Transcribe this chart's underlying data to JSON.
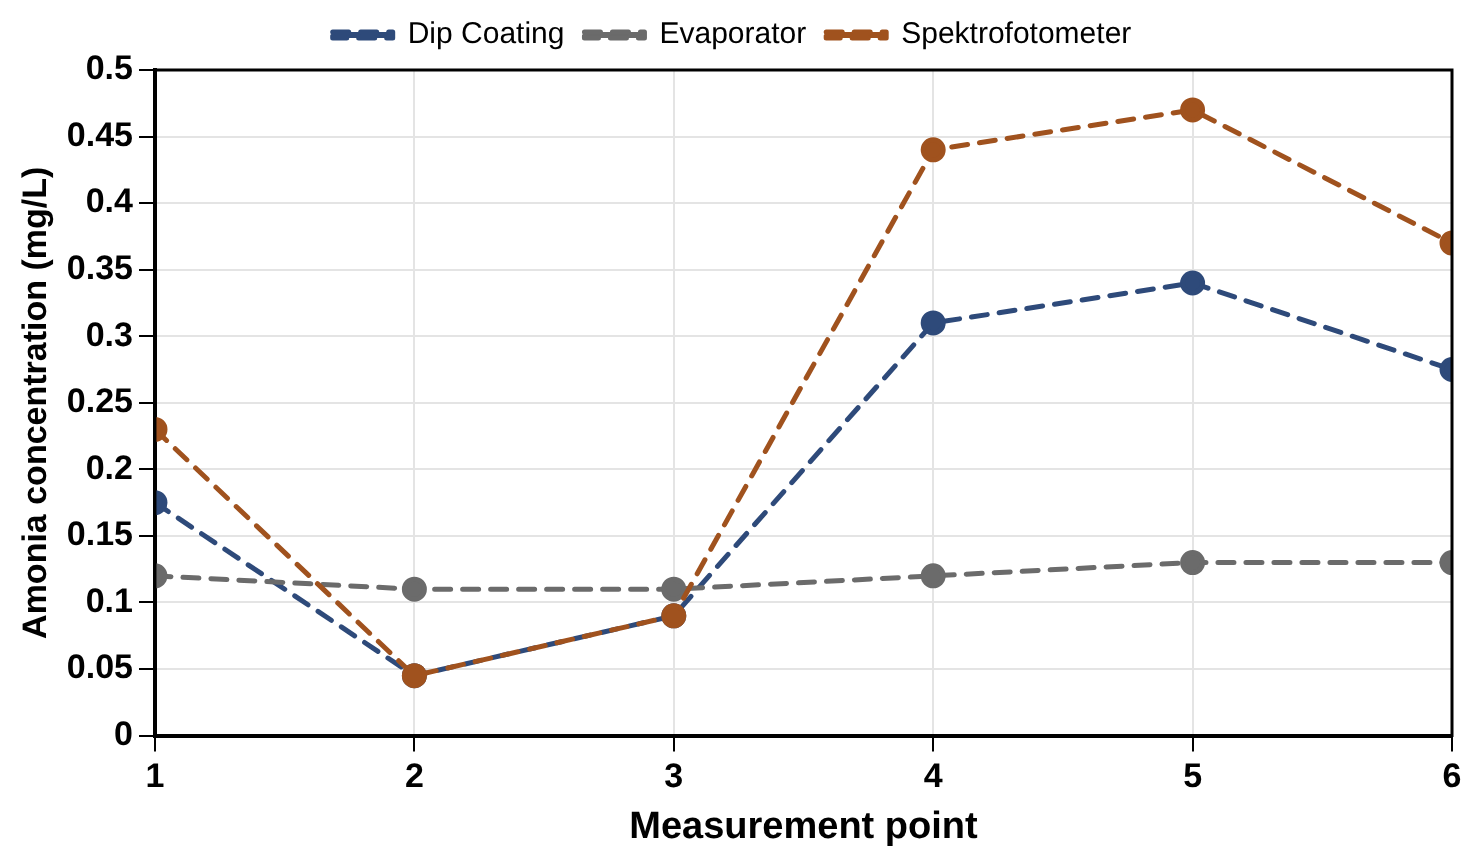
{
  "chart_data": {
    "type": "line",
    "xlabel": "Measurement point",
    "ylabel": "Amonia concentration (mg/L)",
    "x": [
      1,
      2,
      3,
      4,
      5,
      6
    ],
    "series": [
      {
        "name": "Dip Coating",
        "color": "#2e4a7a",
        "values": [
          0.175,
          0.045,
          0.09,
          0.31,
          0.34,
          0.275
        ]
      },
      {
        "name": "Evaporator",
        "color": "#6b6b6b",
        "values": [
          0.12,
          0.11,
          0.11,
          0.12,
          0.13,
          0.13
        ]
      },
      {
        "name": "Spektrofotometer",
        "color": "#a0521e",
        "values": [
          0.23,
          0.045,
          0.09,
          0.44,
          0.47,
          0.37
        ]
      }
    ],
    "xlim": [
      1,
      6
    ],
    "xticks": [
      1,
      2,
      3,
      4,
      5,
      6
    ],
    "ylim": [
      0,
      0.5
    ],
    "yticks": [
      0,
      0.05,
      0.1,
      0.15,
      0.2,
      0.25,
      0.3,
      0.35,
      0.4,
      0.45,
      0.5
    ],
    "grid": true,
    "legend": "top",
    "marker": "circle",
    "line_style": "dashed"
  }
}
